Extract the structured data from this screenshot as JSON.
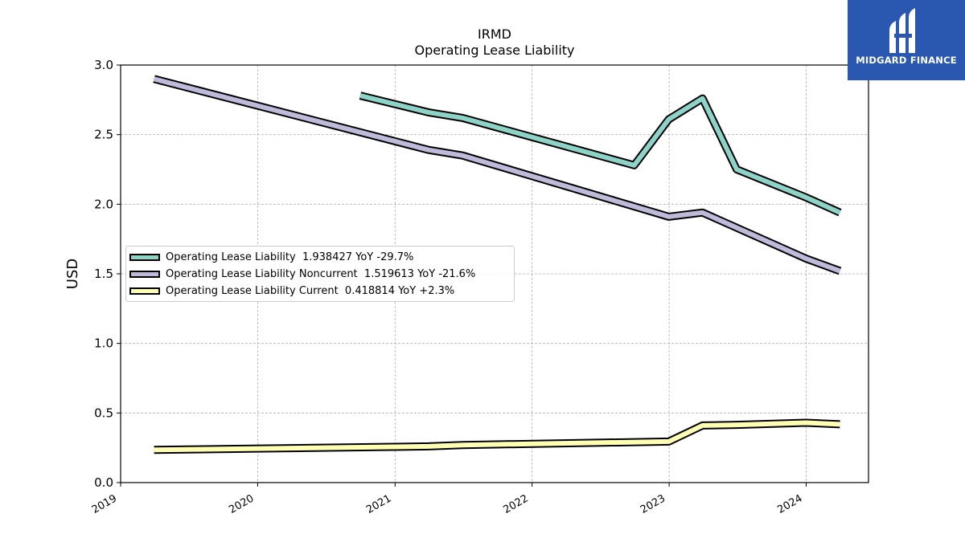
{
  "chart_data": {
    "type": "line",
    "title": "IRMD",
    "subtitle": "Operating Lease Liability",
    "xlabel": "",
    "ylabel": "USD",
    "ylim": [
      0.0,
      3.0
    ],
    "xlim": [
      "2019-01-01",
      "2024-06-15"
    ],
    "y_ticks": [
      "0.0",
      "0.5",
      "1.0",
      "1.5",
      "2.0",
      "2.5",
      "3.0"
    ],
    "x_ticks": [
      "2019",
      "2020",
      "2021",
      "2022",
      "2023",
      "2024"
    ],
    "grid": true,
    "legend_position": "center-left",
    "series": [
      {
        "name": "Operating Lease Liability",
        "legend_label": "Operating Lease Liability  1.938427 YoY -29.7%",
        "color": "#8dd3c7",
        "points": [
          [
            "2020-09-30",
            2.78
          ],
          [
            "2021-03-31",
            2.66
          ],
          [
            "2021-06-30",
            2.62
          ],
          [
            "2022-09-30",
            2.28
          ],
          [
            "2022-12-31",
            2.61
          ],
          [
            "2023-03-31",
            2.76
          ],
          [
            "2023-06-30",
            2.25
          ],
          [
            "2023-12-31",
            2.05
          ],
          [
            "2024-03-31",
            1.94
          ]
        ]
      },
      {
        "name": "Operating Lease Liability Noncurrent",
        "legend_label": "Operating Lease Liability Noncurrent  1.519613 YoY -21.6%",
        "color": "#bebada",
        "points": [
          [
            "2019-03-31",
            2.9
          ],
          [
            "2021-03-31",
            2.39
          ],
          [
            "2021-06-30",
            2.35
          ],
          [
            "2022-12-31",
            1.91
          ],
          [
            "2023-03-31",
            1.94
          ],
          [
            "2023-12-31",
            1.61
          ],
          [
            "2024-03-31",
            1.52
          ]
        ]
      },
      {
        "name": "Operating Lease Liability Current",
        "legend_label": "Operating Lease Liability Current  0.418814 YoY +2.3%",
        "color": "#ffffb3",
        "points": [
          [
            "2019-03-31",
            0.235
          ],
          [
            "2021-03-31",
            0.26
          ],
          [
            "2021-06-30",
            0.27
          ],
          [
            "2022-12-31",
            0.295
          ],
          [
            "2023-03-31",
            0.41
          ],
          [
            "2023-06-30",
            0.415
          ],
          [
            "2023-12-31",
            0.43
          ],
          [
            "2024-03-31",
            0.419
          ]
        ]
      }
    ]
  },
  "logo": {
    "text": "MIDGARD FINANCE",
    "background": "#2a57b0"
  }
}
